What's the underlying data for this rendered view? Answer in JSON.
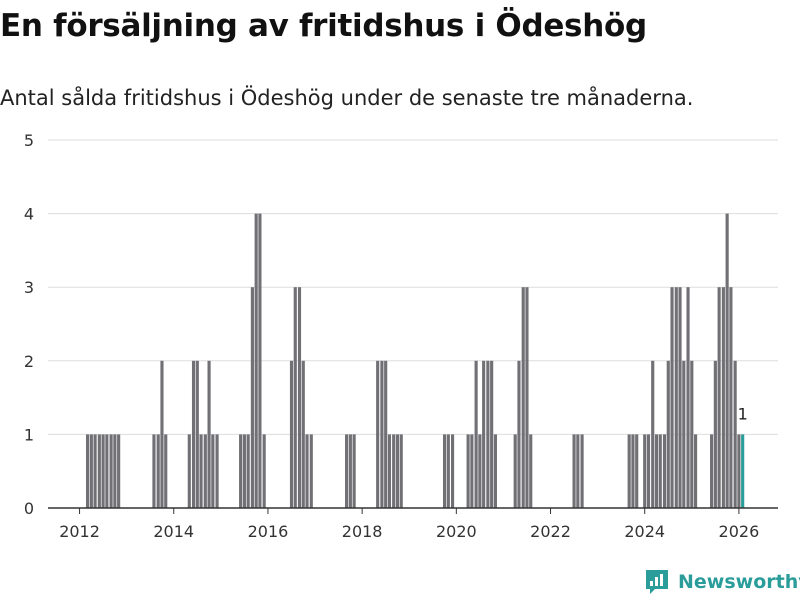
{
  "title": "En försäljning av fritidshus i Ödeshög",
  "subtitle": "Antal sålda fritidshus i Ödeshög under de senaste tre månaderna.",
  "brand": "Newsworthy",
  "colors": {
    "bar": "#717075",
    "highlight": "#2a9d9a",
    "grid": "#dddddd",
    "axis": "#333333"
  },
  "chart_data": {
    "type": "bar",
    "title": "En försäljning av fritidshus i Ödeshög",
    "xlabel": "",
    "ylabel": "",
    "ylim": [
      0,
      5
    ],
    "yticks": [
      0,
      1,
      2,
      3,
      4,
      5
    ],
    "xticks": [
      2012,
      2014,
      2016,
      2018,
      2020,
      2022,
      2024,
      2026
    ],
    "grid": true,
    "xrange": [
      2011.33,
      2026.83
    ],
    "bar_width_years": 0.0667,
    "series": [
      {
        "name": "Sålda fritidshus",
        "points": [
          {
            "x": 2012.17,
            "y": 1
          },
          {
            "x": 2012.25,
            "y": 1
          },
          {
            "x": 2012.33,
            "y": 1
          },
          {
            "x": 2012.42,
            "y": 1
          },
          {
            "x": 2012.5,
            "y": 1
          },
          {
            "x": 2012.58,
            "y": 1
          },
          {
            "x": 2012.67,
            "y": 1
          },
          {
            "x": 2012.75,
            "y": 1
          },
          {
            "x": 2012.83,
            "y": 1
          },
          {
            "x": 2013.58,
            "y": 1
          },
          {
            "x": 2013.67,
            "y": 1
          },
          {
            "x": 2013.75,
            "y": 2
          },
          {
            "x": 2013.83,
            "y": 1
          },
          {
            "x": 2014.33,
            "y": 1
          },
          {
            "x": 2014.42,
            "y": 2
          },
          {
            "x": 2014.5,
            "y": 2
          },
          {
            "x": 2014.58,
            "y": 1
          },
          {
            "x": 2014.67,
            "y": 1
          },
          {
            "x": 2014.75,
            "y": 2
          },
          {
            "x": 2014.83,
            "y": 1
          },
          {
            "x": 2014.92,
            "y": 1
          },
          {
            "x": 2015.42,
            "y": 1
          },
          {
            "x": 2015.5,
            "y": 1
          },
          {
            "x": 2015.58,
            "y": 1
          },
          {
            "x": 2015.67,
            "y": 3
          },
          {
            "x": 2015.75,
            "y": 4
          },
          {
            "x": 2015.83,
            "y": 4
          },
          {
            "x": 2015.92,
            "y": 1
          },
          {
            "x": 2016.5,
            "y": 2
          },
          {
            "x": 2016.58,
            "y": 3
          },
          {
            "x": 2016.67,
            "y": 3
          },
          {
            "x": 2016.75,
            "y": 2
          },
          {
            "x": 2016.83,
            "y": 1
          },
          {
            "x": 2016.92,
            "y": 1
          },
          {
            "x": 2017.67,
            "y": 1
          },
          {
            "x": 2017.75,
            "y": 1
          },
          {
            "x": 2017.83,
            "y": 1
          },
          {
            "x": 2018.33,
            "y": 2
          },
          {
            "x": 2018.42,
            "y": 2
          },
          {
            "x": 2018.5,
            "y": 2
          },
          {
            "x": 2018.58,
            "y": 1
          },
          {
            "x": 2018.67,
            "y": 1
          },
          {
            "x": 2018.75,
            "y": 1
          },
          {
            "x": 2018.83,
            "y": 1
          },
          {
            "x": 2019.75,
            "y": 1
          },
          {
            "x": 2019.83,
            "y": 1
          },
          {
            "x": 2019.92,
            "y": 1
          },
          {
            "x": 2020.25,
            "y": 1
          },
          {
            "x": 2020.33,
            "y": 1
          },
          {
            "x": 2020.42,
            "y": 2
          },
          {
            "x": 2020.5,
            "y": 1
          },
          {
            "x": 2020.58,
            "y": 2
          },
          {
            "x": 2020.67,
            "y": 2
          },
          {
            "x": 2020.75,
            "y": 2
          },
          {
            "x": 2020.83,
            "y": 1
          },
          {
            "x": 2021.25,
            "y": 1
          },
          {
            "x": 2021.33,
            "y": 2
          },
          {
            "x": 2021.42,
            "y": 3
          },
          {
            "x": 2021.5,
            "y": 3
          },
          {
            "x": 2021.58,
            "y": 1
          },
          {
            "x": 2022.5,
            "y": 1
          },
          {
            "x": 2022.58,
            "y": 1
          },
          {
            "x": 2022.67,
            "y": 1
          },
          {
            "x": 2023.67,
            "y": 1
          },
          {
            "x": 2023.75,
            "y": 1
          },
          {
            "x": 2023.83,
            "y": 1
          },
          {
            "x": 2024.0,
            "y": 1
          },
          {
            "x": 2024.08,
            "y": 1
          },
          {
            "x": 2024.17,
            "y": 2
          },
          {
            "x": 2024.25,
            "y": 1
          },
          {
            "x": 2024.33,
            "y": 1
          },
          {
            "x": 2024.42,
            "y": 1
          },
          {
            "x": 2024.5,
            "y": 2
          },
          {
            "x": 2024.58,
            "y": 3
          },
          {
            "x": 2024.67,
            "y": 3
          },
          {
            "x": 2024.75,
            "y": 3
          },
          {
            "x": 2024.83,
            "y": 2
          },
          {
            "x": 2024.92,
            "y": 3
          },
          {
            "x": 2025.0,
            "y": 2
          },
          {
            "x": 2025.08,
            "y": 1
          },
          {
            "x": 2025.42,
            "y": 1
          },
          {
            "x": 2025.5,
            "y": 2
          },
          {
            "x": 2025.58,
            "y": 3
          },
          {
            "x": 2025.67,
            "y": 3
          },
          {
            "x": 2025.75,
            "y": 4
          },
          {
            "x": 2025.83,
            "y": 3
          },
          {
            "x": 2025.92,
            "y": 2
          },
          {
            "x": 2026.0,
            "y": 1
          },
          {
            "x": 2026.08,
            "y": 1
          }
        ]
      }
    ],
    "annotation": {
      "x": 2026.08,
      "y": 1,
      "text": "1"
    }
  }
}
